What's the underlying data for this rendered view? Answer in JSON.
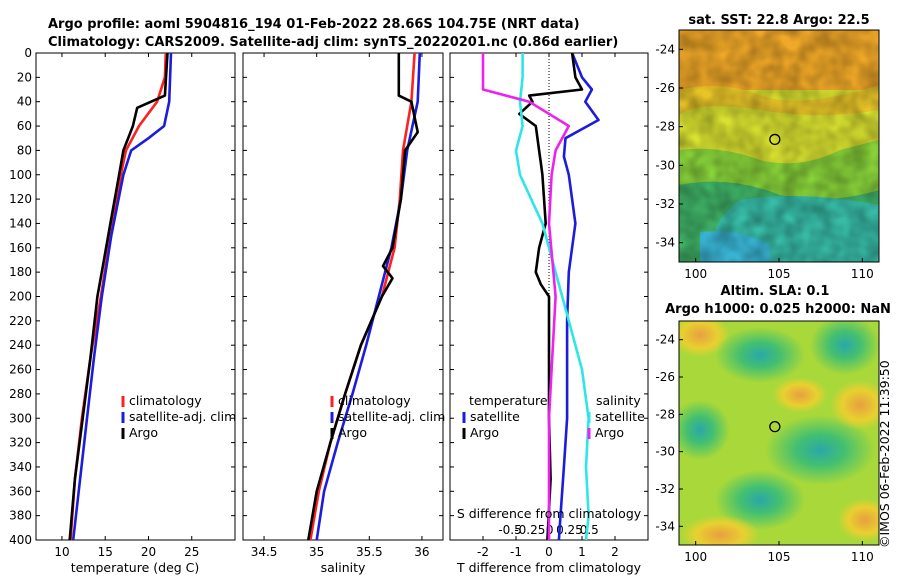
{
  "title_line1": "Argo profile: aoml 5904816_194 01-Feb-2022 28.66S 104.75E (NRT data)",
  "title_line2": "Climatology: CARS2009. Satellite-adj clim: synTS_20220201.nc (0.86d earlier)",
  "stamp": "©IMOS 06-Feb-2022 11:39:50",
  "colors": {
    "climatology": "#ff2020",
    "satellite": "#1c1cdc",
    "argo": "#000000",
    "sat_sal": "#2ee6e6",
    "argo_sal": "#ee22ee"
  },
  "chart_data": [
    {
      "type": "line",
      "name": "temperature-profile",
      "xlabel": "temperature (deg C)",
      "xlim": [
        7,
        30
      ],
      "ylim": [
        400,
        0
      ],
      "xticks": [
        10,
        15,
        20,
        25
      ],
      "yticks": [
        0,
        20,
        40,
        60,
        80,
        100,
        120,
        140,
        160,
        180,
        200,
        220,
        240,
        260,
        280,
        300,
        320,
        340,
        360,
        380,
        400
      ],
      "legend": [
        "climatology",
        "satellite-adj. clim",
        "Argo"
      ],
      "series": [
        {
          "name": "climatology",
          "depth": [
            0,
            20,
            40,
            60,
            80,
            100,
            150,
            200,
            250,
            300,
            350,
            400
          ],
          "values": [
            22.0,
            21.9,
            21.0,
            18.9,
            17.4,
            16.8,
            15.6,
            14.5,
            13.3,
            12.3,
            11.5,
            11.0
          ]
        },
        {
          "name": "satellite-adj. clim",
          "depth": [
            0,
            20,
            40,
            60,
            70,
            80,
            100,
            150,
            200,
            250,
            300,
            350,
            400
          ],
          "values": [
            22.6,
            22.5,
            22.4,
            21.8,
            20.0,
            18.0,
            17.1,
            15.7,
            14.6,
            13.7,
            12.9,
            12.1,
            11.3
          ]
        },
        {
          "name": "Argo",
          "depth": [
            0,
            35,
            45,
            60,
            80,
            100,
            140,
            180,
            200,
            250,
            300,
            350,
            400
          ],
          "values": [
            22.2,
            21.9,
            18.7,
            18.2,
            17.1,
            16.6,
            15.6,
            14.6,
            14.1,
            13.3,
            12.4,
            11.5,
            10.9
          ]
        }
      ]
    },
    {
      "type": "line",
      "name": "salinity-profile",
      "xlabel": "salinity",
      "xlim": [
        34.3,
        36.2
      ],
      "ylim": [
        400,
        0
      ],
      "xticks": [
        34.5,
        35,
        35.5,
        36
      ],
      "legend": [
        "climatology",
        "satellite-adj. clim",
        "Argo"
      ],
      "series": [
        {
          "name": "climatology",
          "depth": [
            0,
            40,
            80,
            120,
            160,
            200,
            240,
            280,
            320,
            360,
            400
          ],
          "values": [
            35.93,
            35.9,
            35.82,
            35.79,
            35.74,
            35.62,
            35.42,
            35.27,
            35.13,
            35.02,
            34.94
          ]
        },
        {
          "name": "satellite-adj. clim",
          "depth": [
            0,
            40,
            80,
            120,
            160,
            200,
            240,
            280,
            320,
            360,
            400
          ],
          "values": [
            35.98,
            35.96,
            35.86,
            35.8,
            35.71,
            35.59,
            35.47,
            35.34,
            35.2,
            35.07,
            35.0
          ]
        },
        {
          "name": "Argo",
          "depth": [
            0,
            35,
            40,
            65,
            80,
            120,
            160,
            175,
            185,
            200,
            240,
            280,
            320,
            360,
            400
          ],
          "values": [
            35.78,
            35.78,
            35.9,
            35.96,
            35.84,
            35.8,
            35.72,
            35.63,
            35.72,
            35.62,
            35.42,
            35.27,
            35.13,
            35.0,
            34.92
          ]
        }
      ]
    },
    {
      "type": "line",
      "name": "difference-profile",
      "xlabel": "T difference from climatology",
      "xlabel_top": "S difference from climatology",
      "xlim": [
        -3,
        3
      ],
      "ylim": [
        400,
        0
      ],
      "xticks": [
        -2,
        -1,
        0,
        1,
        2
      ],
      "xticks_top": [
        "-0.5",
        "-0.25",
        "0",
        "0.25",
        "0.5"
      ],
      "legend_temperature": {
        "header": "temperature",
        "items": [
          "satellite",
          "Argo"
        ]
      },
      "legend_salinity": {
        "header": "salinity",
        "items": [
          "satellite",
          "Argo"
        ]
      },
      "series": [
        {
          "name": "T satellite",
          "depth": [
            0,
            20,
            30,
            40,
            55,
            70,
            85,
            100,
            140,
            180,
            220,
            260,
            300,
            340,
            380,
            400
          ],
          "values": [
            0.7,
            1.0,
            1.3,
            1.1,
            1.5,
            0.5,
            0.45,
            0.6,
            0.8,
            0.6,
            0.55,
            0.55,
            0.55,
            0.45,
            0.35,
            0.3
          ]
        },
        {
          "name": "T Argo",
          "depth": [
            0,
            20,
            30,
            35,
            40,
            50,
            60,
            80,
            90,
            100,
            140,
            160,
            180,
            190,
            200,
            250,
            300,
            350,
            400
          ],
          "values": [
            0.7,
            0.8,
            1.0,
            -0.6,
            -0.5,
            -0.9,
            -0.4,
            -0.3,
            -0.25,
            -0.2,
            -0.1,
            -0.3,
            -0.4,
            -0.25,
            0.0,
            0.0,
            0.0,
            0.05,
            -0.05
          ]
        },
        {
          "name": "S satellite",
          "depth": [
            0,
            20,
            40,
            60,
            80,
            100,
            140,
            200,
            260,
            300,
            340,
            380,
            400
          ],
          "values": [
            -0.2,
            -0.2,
            -0.22,
            -0.2,
            -0.25,
            -0.22,
            -0.05,
            0.1,
            0.25,
            0.3,
            0.28,
            0.3,
            0.28
          ]
        },
        {
          "name": "S Argo",
          "depth": [
            0,
            20,
            30,
            40,
            60,
            70,
            80,
            100,
            140,
            200,
            260,
            300,
            340,
            380,
            400
          ],
          "values": [
            -0.5,
            -0.5,
            -0.5,
            -0.15,
            0.15,
            0.1,
            0.05,
            0.02,
            0.0,
            0.05,
            0.02,
            0.0,
            0.0,
            0.0,
            0.0
          ]
        }
      ]
    },
    {
      "type": "heatmap",
      "name": "sst-map",
      "title": "sat. SST: 22.8 Argo: 22.5",
      "xticks": [
        100,
        105,
        110
      ],
      "yticks": [
        -24,
        -26,
        -28,
        -30,
        -32,
        -34
      ],
      "xlim": [
        99,
        111
      ],
      "ylim": [
        -35,
        -23
      ],
      "marker": {
        "lon": 104.75,
        "lat": -28.66
      }
    },
    {
      "type": "heatmap",
      "name": "sla-map",
      "title_line1": "Altim. SLA: 0.1",
      "title_line2": "Argo h1000: 0.025 h2000: NaN",
      "xticks": [
        100,
        105,
        110
      ],
      "yticks": [
        -24,
        -26,
        -28,
        -30,
        -32,
        -34
      ],
      "xlim": [
        99,
        111
      ],
      "ylim": [
        -35,
        -23
      ],
      "marker": {
        "lon": 104.75,
        "lat": -28.66
      }
    }
  ]
}
